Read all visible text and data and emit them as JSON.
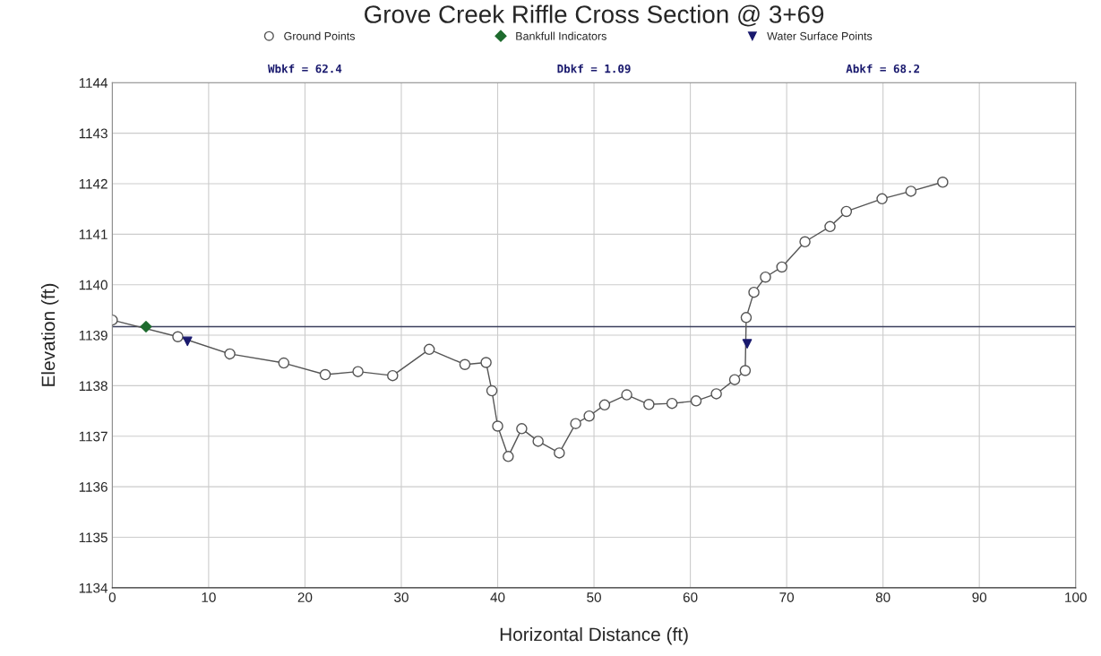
{
  "chart_data": {
    "type": "line",
    "title": "Grove Creek Riffle Cross Section @ 3+69",
    "xlabel": "Horizontal Distance (ft)",
    "ylabel": "Elevation (ft)",
    "xlim": [
      0,
      100
    ],
    "xticks": [
      0,
      10,
      20,
      30,
      40,
      50,
      60,
      70,
      80,
      90,
      100
    ],
    "ylim": [
      1134,
      1144
    ],
    "yticks": [
      1134,
      1135,
      1136,
      1137,
      1138,
      1139,
      1140,
      1141,
      1142,
      1143,
      1144
    ],
    "grid": true,
    "legend": "top",
    "series": [
      {
        "name": "Ground Points",
        "marker": "circle",
        "color": "#555555",
        "x": [
          0,
          6.8,
          12.2,
          17.8,
          22.1,
          25.5,
          29.1,
          32.9,
          36.6,
          38.8,
          39.4,
          40,
          41.1,
          42.5,
          44.2,
          46.4,
          48.1,
          49.5,
          51.1,
          53.4,
          55.7,
          58.1,
          60.6,
          62.7,
          64.6,
          65.7,
          65.8,
          66.6,
          67.8,
          69.5,
          71.9,
          74.5,
          76.2,
          79.9,
          82.9,
          86.2
        ],
        "values": [
          1139.3,
          1138.97,
          1138.63,
          1138.45,
          1138.22,
          1138.28,
          1138.2,
          1138.72,
          1138.42,
          1138.46,
          1137.9,
          1137.2,
          1136.6,
          1137.15,
          1136.9,
          1136.67,
          1137.25,
          1137.4,
          1137.62,
          1137.82,
          1137.63,
          1137.65,
          1137.7,
          1137.84,
          1138.12,
          1138.3,
          1139.35,
          1139.85,
          1140.15,
          1140.35,
          1140.85,
          1141.15,
          1141.45,
          1141.7,
          1141.85,
          1142.03
        ]
      },
      {
        "name": "Bankfull Indicators",
        "type": "scatter",
        "marker": "diamond",
        "color": "#1e6b2e",
        "x": [
          3.5
        ],
        "values": [
          1139.17
        ]
      },
      {
        "name": "Water Surface Points",
        "type": "scatter",
        "marker": "triangle",
        "color": "#1a1a6e",
        "x": [
          7.8,
          65.9
        ],
        "values": [
          1138.88,
          1138.83
        ]
      }
    ],
    "ref_lines": [
      {
        "axis": "y",
        "value": 1139.17,
        "color": "#3a3f5c"
      }
    ],
    "annotations": [
      "Wbkf = 62.4",
      "Dbkf = 1.09",
      "Abkf = 68.2"
    ]
  }
}
